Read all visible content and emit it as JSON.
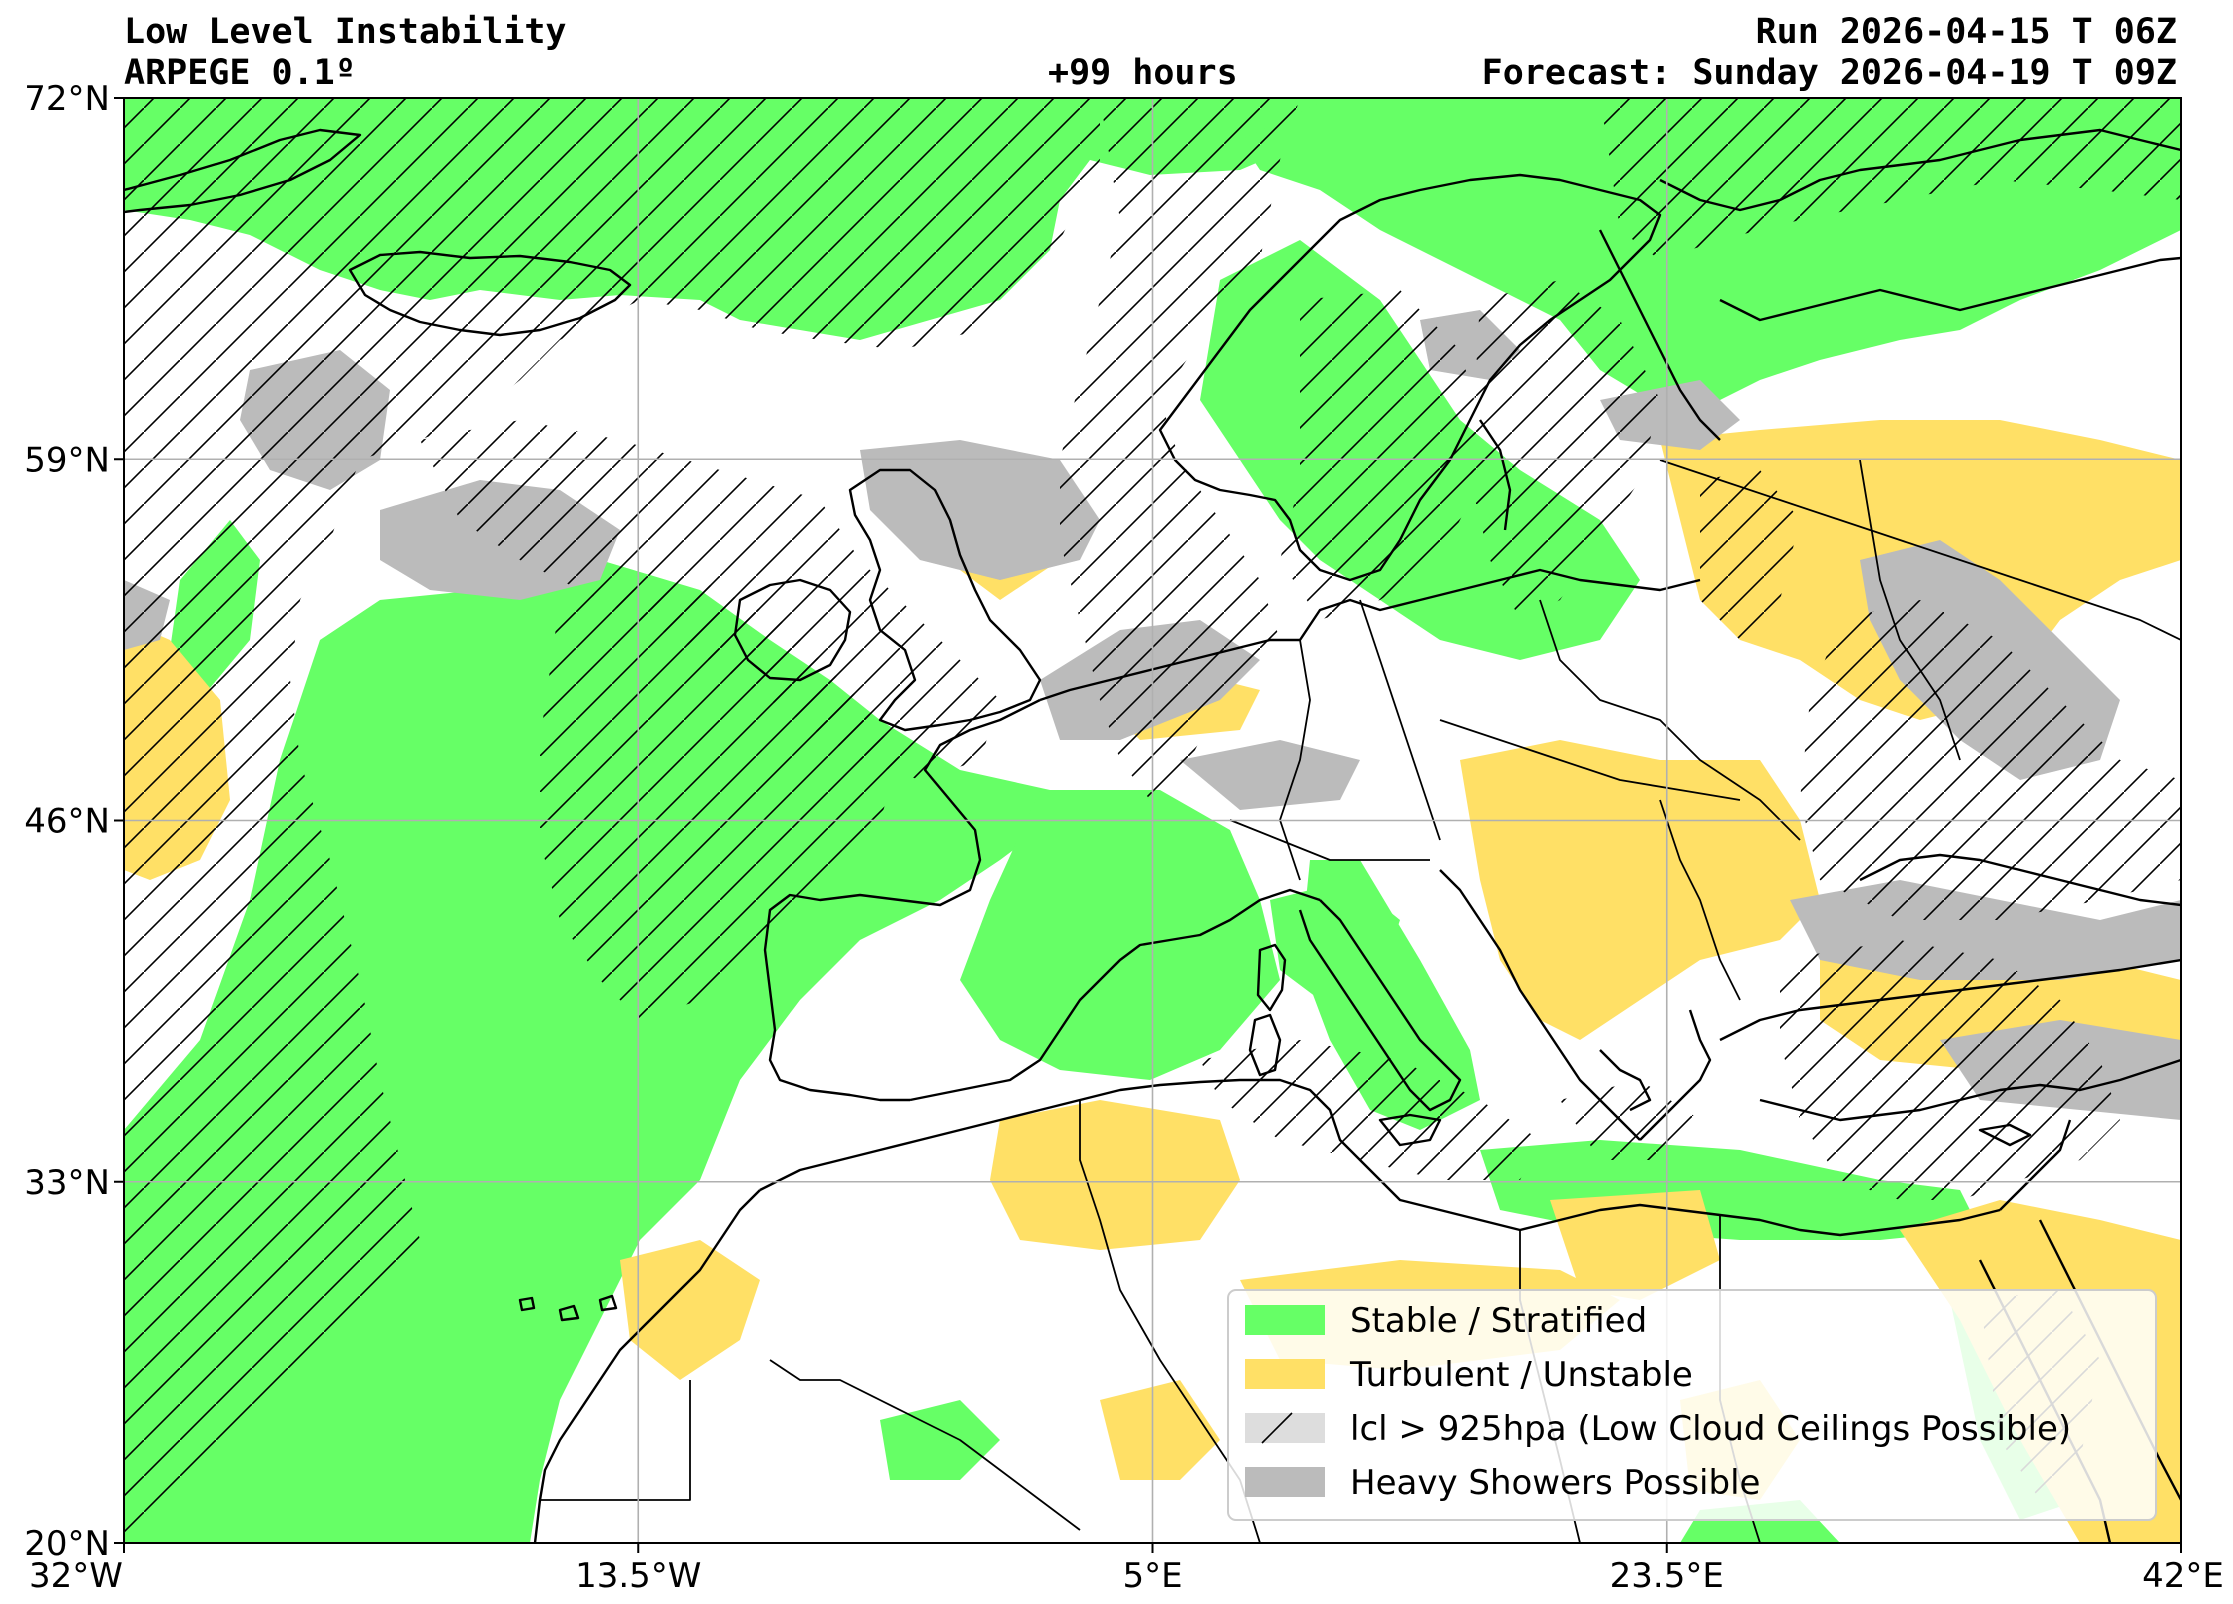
{
  "header": {
    "title": "Low Level Instability",
    "model": "ARPEGE 0.1º",
    "lead_time": "+99 hours",
    "run": "Run 2026-04-15 T 06Z",
    "forecast": "Forecast: Sunday 2026-04-19 T 09Z"
  },
  "map": {
    "lon_range": [
      -32,
      42
    ],
    "lat_range": [
      20,
      72
    ],
    "lon_ticks": [
      {
        "value": -32,
        "label": "32°W"
      },
      {
        "value": -13.5,
        "label": "13.5°W"
      },
      {
        "value": 5,
        "label": "5°E"
      },
      {
        "value": 23.5,
        "label": "23.5°E"
      },
      {
        "value": 42,
        "label": "42°E"
      }
    ],
    "lat_ticks": [
      {
        "value": 72,
        "label": "72°N"
      },
      {
        "value": 59,
        "label": "59°N"
      },
      {
        "value": 46,
        "label": "46°N"
      },
      {
        "value": 33,
        "label": "33°N"
      },
      {
        "value": 20,
        "label": "20°N"
      }
    ],
    "grid": true
  },
  "colors": {
    "stable": "#66ff66",
    "turbulent": "#ffe066",
    "lcl": "#dddddd",
    "showers": "#bbbbbb",
    "coast": "#000000"
  },
  "legend": {
    "placement": "lower-right",
    "items": [
      {
        "label": "Stable / Stratified",
        "swatch": "stable"
      },
      {
        "label": "Turbulent / Unstable",
        "swatch": "turbulent"
      },
      {
        "label": "lcl > 925hpa (Low Cloud Ceilings Possible)",
        "swatch": "lcl"
      },
      {
        "label": "Heavy Showers Possible",
        "swatch": "showers"
      }
    ]
  }
}
